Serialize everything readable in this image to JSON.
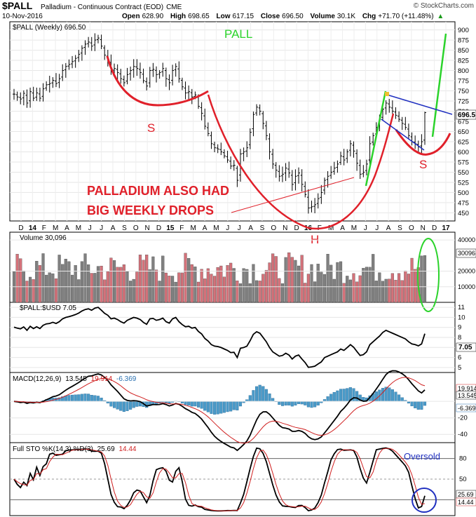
{
  "header": {
    "symbol": "$PALL",
    "name": "Palladium - Continuous Contract (EOD)",
    "exchange": "CME",
    "date": "10-Nov-2016",
    "open_label": "Open",
    "open": "628.90",
    "high_label": "High",
    "high": "698.65",
    "low_label": "Low",
    "low": "617.15",
    "close_label": "Close",
    "close": "696.50",
    "volume_label": "Volume",
    "volume": "30.1K",
    "chg_label": "Chg",
    "chg": "+71.70 (+11.48%)",
    "chg_arrow": "▲",
    "brand": "© StockCharts.com"
  },
  "colors": {
    "up": "#000000",
    "down": "#000000",
    "vol_up": "#808080",
    "vol_down": "#d4727a",
    "annot_red": "#e0202a",
    "annot_green": "#2bd32b",
    "annot_blue": "#2030c0",
    "macd_hist": "#4a9ac8",
    "signal": "#d02020"
  },
  "chart_data": [
    {
      "type": "candlestick",
      "title": "$PALL (Weekly) 696.50",
      "ylim": [
        430,
        920
      ],
      "yticks": [
        450,
        475,
        500,
        525,
        550,
        575,
        600,
        625,
        650,
        675,
        700,
        725,
        750,
        775,
        800,
        825,
        850,
        875,
        900
      ],
      "last_value_label": "696.5",
      "x_tick_labels": [
        "D",
        "14",
        "F",
        "M",
        "A",
        "M",
        "J",
        "J",
        "A",
        "S",
        "O",
        "N",
        "D",
        "15",
        "F",
        "M",
        "A",
        "M",
        "J",
        "J",
        "A",
        "S",
        "O",
        "N",
        "D",
        "16",
        "F",
        "M",
        "A",
        "M",
        "J",
        "J",
        "A",
        "S",
        "O",
        "N",
        "D",
        "17"
      ],
      "bold_x_labels": [
        "14",
        "15",
        "16",
        "17"
      ],
      "close": [
        742,
        735,
        730,
        744,
        720,
        748,
        732,
        745,
        732,
        755,
        765,
        768,
        776,
        768,
        780,
        800,
        810,
        815,
        822,
        830,
        840,
        855,
        865,
        870,
        860,
        875,
        880,
        860,
        838,
        825,
        800,
        805,
        795,
        780,
        770,
        790,
        800,
        810,
        805,
        795,
        775,
        762,
        800,
        803,
        790,
        795,
        805,
        780,
        770,
        800,
        810,
        780,
        760,
        745,
        748,
        735,
        740,
        712,
        695,
        663,
        645,
        620,
        610,
        607,
        600,
        590,
        580,
        565,
        567,
        530,
        595,
        600,
        610,
        648,
        692,
        710,
        700,
        670,
        640,
        600,
        570,
        555,
        540,
        545,
        560,
        548,
        520,
        540,
        548,
        520,
        495,
        462,
        465,
        470,
        485,
        500,
        530,
        540,
        550,
        560,
        570,
        590,
        580,
        600,
        620,
        602,
        572,
        545,
        550,
        570,
        620,
        640,
        660,
        680,
        705,
        720,
        710,
        700,
        690,
        680,
        670,
        660,
        640,
        625,
        620,
        612,
        625,
        696.5
      ],
      "annotations": {
        "pall_label": "PALL",
        "s_left": "S",
        "s_right": "S",
        "h_label": "H",
        "drops_line1": "PALLADIUM ALSO HAD",
        "drops_line2": "BIG WEEKLY DROPS"
      }
    },
    {
      "type": "bar",
      "title": "Volume 30,096",
      "ylim": [
        0,
        45000
      ],
      "yticks_labels": [
        "10000",
        "20000",
        "40000"
      ],
      "yticks_values": [
        10000,
        20000,
        40000
      ],
      "last_value_label": "30096"
    },
    {
      "type": "line",
      "title": "$PALL:$USD 7.05",
      "ylim": [
        4.5,
        11.5
      ],
      "yticks": [
        5,
        6,
        7,
        8,
        9,
        10,
        11
      ],
      "last_value_label": "7.05"
    },
    {
      "type": "line",
      "title_prefix": "MACD(12,26,9)",
      "values_text": [
        "13.545",
        "19.914",
        "-6.369"
      ],
      "ylim": [
        -50,
        35
      ],
      "yticks_labels": [
        "-40",
        "-20"
      ],
      "yticks_values": [
        -40,
        -20
      ],
      "last_value_labels": [
        "19.914",
        "13.545",
        "-6.369"
      ]
    },
    {
      "type": "line",
      "title_prefix": "Full STO %K(14,3) %D(3)",
      "values_text": [
        "25.69",
        "14.44"
      ],
      "ylim": [
        0,
        100
      ],
      "yticks": [
        20,
        50,
        80
      ],
      "last_value_labels": [
        "25.69",
        "14.44"
      ],
      "annotation": "Oversold"
    }
  ]
}
